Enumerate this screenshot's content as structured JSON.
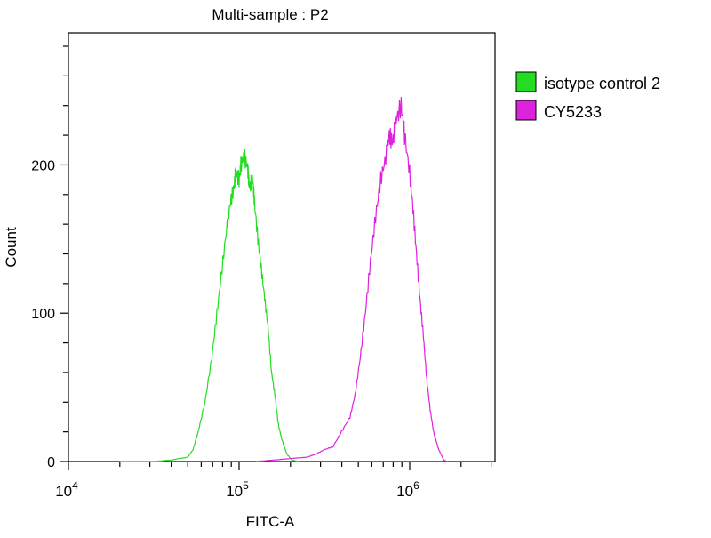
{
  "chart_data": {
    "type": "line",
    "title": "Multi-sample : P2",
    "xlabel": "FITC-A",
    "ylabel": "Count",
    "x_scale": "log10",
    "xlim_log10": [
      4,
      6.5
    ],
    "ylim": [
      0,
      289
    ],
    "x_ticks": [
      {
        "base": "10",
        "exp": "4",
        "log": 4
      },
      {
        "base": "10",
        "exp": "5",
        "log": 5
      },
      {
        "base": "10",
        "exp": "6",
        "log": 6
      }
    ],
    "y_ticks": [
      {
        "label": "0",
        "value": 0
      },
      {
        "label": "100",
        "value": 100
      },
      {
        "label": "200",
        "value": 200
      }
    ],
    "y_minor_step": 20,
    "grid": false,
    "legend_position": "right",
    "series": [
      {
        "name": "isotype control 2",
        "color": "#22dd22",
        "x_log10": [
          4.3,
          4.5,
          4.6,
          4.65,
          4.7,
          4.73,
          4.76,
          4.8,
          4.84,
          4.87,
          4.9,
          4.93,
          4.95,
          4.97,
          4.98,
          5.0,
          5.01,
          5.03,
          5.05,
          5.06,
          5.08,
          5.09,
          5.11,
          5.13,
          5.15,
          5.17,
          5.19,
          5.21,
          5.23,
          5.25,
          5.28,
          5.31,
          5.35
        ],
        "count": [
          0,
          0,
          1,
          2,
          3,
          8,
          20,
          40,
          70,
          100,
          130,
          160,
          175,
          185,
          195,
          190,
          200,
          206,
          198,
          185,
          190,
          175,
          150,
          130,
          110,
          90,
          60,
          45,
          25,
          15,
          5,
          1,
          0
        ]
      },
      {
        "name": "CY5233",
        "color": "#dd22dd",
        "x_log10": [
          5.1,
          5.2,
          5.3,
          5.4,
          5.45,
          5.5,
          5.55,
          5.6,
          5.65,
          5.68,
          5.71,
          5.74,
          5.77,
          5.8,
          5.83,
          5.86,
          5.88,
          5.9,
          5.92,
          5.95,
          5.97,
          6.0,
          6.02,
          6.04,
          6.06,
          6.08,
          6.1,
          6.12,
          6.14,
          6.17,
          6.2,
          6.22
        ],
        "count": [
          0,
          1,
          2,
          3,
          5,
          8,
          10,
          20,
          30,
          45,
          70,
          100,
          135,
          165,
          190,
          205,
          220,
          215,
          230,
          240,
          220,
          195,
          170,
          140,
          110,
          85,
          55,
          35,
          20,
          8,
          1,
          0
        ]
      }
    ]
  }
}
